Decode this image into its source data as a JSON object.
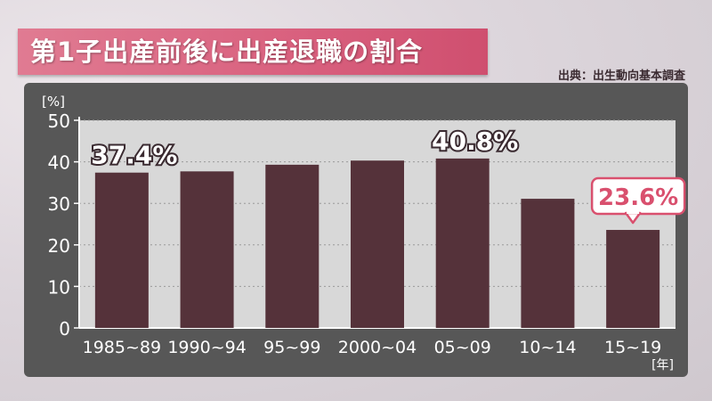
{
  "title": "第1子出産前後に出産退職の割合",
  "source": "出典：出生動向基本調査",
  "colors": {
    "bar": "#55323a",
    "accent": "#d9506e",
    "banner": "#d9607e"
  },
  "chart_data": {
    "type": "bar",
    "title": "第1子出産前後に出産退職の割合",
    "ylabel": "[%]",
    "xlabel": "[年]",
    "ylim": [
      0,
      50
    ],
    "yticks": [
      0,
      10,
      20,
      30,
      40,
      50
    ],
    "grid": true,
    "categories": [
      "1985~89",
      "1990~94",
      "95~99",
      "2000~04",
      "05~09",
      "10~14",
      "15~19"
    ],
    "values": [
      37.4,
      37.7,
      39.3,
      40.3,
      40.8,
      31.1,
      23.6
    ],
    "annotations": [
      {
        "category": "1985~89",
        "text": "37.4%",
        "style": "plain"
      },
      {
        "category": "05~09",
        "text": "40.8%",
        "style": "plain"
      },
      {
        "category": "15~19",
        "text": "23.6%",
        "style": "callout"
      }
    ]
  }
}
